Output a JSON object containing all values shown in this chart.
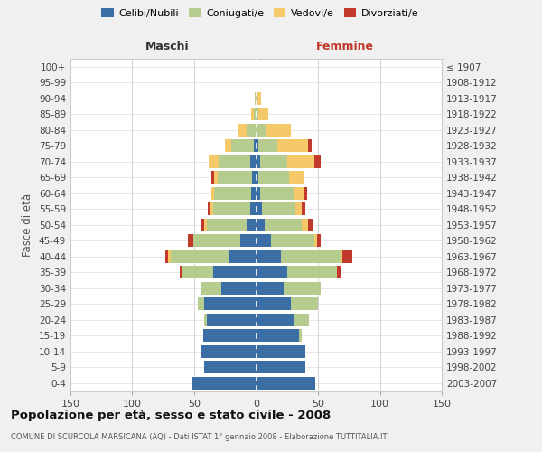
{
  "age_groups": [
    "0-4",
    "5-9",
    "10-14",
    "15-19",
    "20-24",
    "25-29",
    "30-34",
    "35-39",
    "40-44",
    "45-49",
    "50-54",
    "55-59",
    "60-64",
    "65-69",
    "70-74",
    "75-79",
    "80-84",
    "85-89",
    "90-94",
    "95-99",
    "100+"
  ],
  "birth_years": [
    "2003-2007",
    "1998-2002",
    "1993-1997",
    "1988-1992",
    "1983-1987",
    "1978-1982",
    "1973-1977",
    "1968-1972",
    "1963-1967",
    "1958-1962",
    "1953-1957",
    "1948-1952",
    "1943-1947",
    "1938-1942",
    "1933-1937",
    "1928-1932",
    "1923-1927",
    "1918-1922",
    "1913-1917",
    "1908-1912",
    "≤ 1907"
  ],
  "maschi": {
    "celibi": [
      52,
      42,
      45,
      43,
      40,
      42,
      28,
      35,
      22,
      13,
      8,
      5,
      4,
      3,
      5,
      2,
      0,
      0,
      0,
      0,
      0
    ],
    "coniugati": [
      0,
      0,
      0,
      0,
      2,
      5,
      17,
      25,
      47,
      38,
      32,
      30,
      30,
      28,
      25,
      18,
      8,
      2,
      1,
      0,
      0
    ],
    "vedovi": [
      0,
      0,
      0,
      0,
      0,
      0,
      0,
      0,
      2,
      0,
      2,
      2,
      2,
      3,
      8,
      5,
      7,
      2,
      0,
      0,
      0
    ],
    "divorziati": [
      0,
      0,
      0,
      0,
      0,
      0,
      0,
      2,
      2,
      4,
      2,
      2,
      0,
      2,
      0,
      0,
      0,
      0,
      0,
      0,
      0
    ]
  },
  "femmine": {
    "nubili": [
      48,
      40,
      40,
      35,
      30,
      28,
      22,
      25,
      20,
      12,
      7,
      5,
      3,
      2,
      3,
      2,
      0,
      0,
      1,
      0,
      0
    ],
    "coniugate": [
      0,
      0,
      0,
      2,
      13,
      22,
      30,
      40,
      48,
      35,
      30,
      27,
      27,
      25,
      22,
      15,
      8,
      2,
      0,
      0,
      0
    ],
    "vedove": [
      0,
      0,
      0,
      0,
      0,
      0,
      0,
      0,
      2,
      2,
      5,
      5,
      8,
      12,
      22,
      25,
      20,
      8,
      3,
      0,
      0
    ],
    "divorziate": [
      0,
      0,
      0,
      0,
      0,
      0,
      0,
      3,
      8,
      3,
      4,
      3,
      3,
      0,
      5,
      3,
      0,
      0,
      0,
      0,
      0
    ]
  },
  "colors": {
    "celibi_nubili": "#3a6ea5",
    "coniugati_e": "#b5cc8e",
    "vedovi_e": "#f5c96a",
    "divorziati_e": "#c0392b"
  },
  "xlim": 150,
  "title": "Popolazione per età, sesso e stato civile - 2008",
  "subtitle": "COMUNE DI SCURCOLA MARSICANA (AQ) - Dati ISTAT 1° gennaio 2008 - Elaborazione TUTTITALIA.IT",
  "ylabel_left": "Fasce di età",
  "xlabel_left": "Maschi",
  "xlabel_right": "Femmine",
  "legend_labels": [
    "Celibi/Nubili",
    "Coniugati/e",
    "Vedovi/e",
    "Divorziati/e"
  ],
  "bg_color": "#f0f0f0",
  "plot_bg_color": "#ffffff"
}
